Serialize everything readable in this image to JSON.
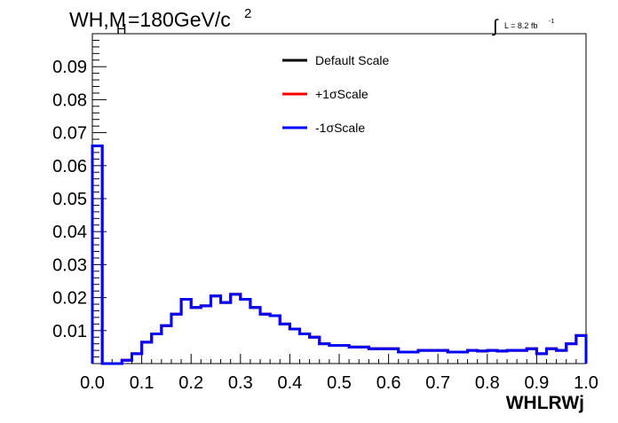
{
  "chart_data": {
    "type": "line",
    "step": true,
    "title": {
      "prefix": "WH,M",
      "subscript": "H",
      "main": "=180GeV/c",
      "superscript": "2"
    },
    "luminosity": {
      "symbol": "∫",
      "text": "L = 8.2 fb",
      "superscript": "-1"
    },
    "xlabel": "WHLRWj",
    "ylabel": "",
    "xlim": [
      0.0,
      1.0
    ],
    "ylim": [
      0.0,
      0.1
    ],
    "x_ticks": [
      "0.0",
      "0.1",
      "0.2",
      "0.3",
      "0.4",
      "0.5",
      "0.6",
      "0.7",
      "0.8",
      "0.9",
      "1.0"
    ],
    "y_ticks": [
      "0.01",
      "0.02",
      "0.03",
      "0.04",
      "0.05",
      "0.06",
      "0.07",
      "0.08",
      "0.09"
    ],
    "bin_edges": [
      0.0,
      0.02,
      0.04,
      0.06,
      0.08,
      0.1,
      0.12,
      0.14,
      0.16,
      0.18,
      0.2,
      0.22,
      0.24,
      0.26,
      0.28,
      0.3,
      0.32,
      0.34,
      0.36,
      0.38,
      0.4,
      0.42,
      0.44,
      0.46,
      0.48,
      0.5,
      0.52,
      0.54,
      0.56,
      0.58,
      0.6,
      0.62,
      0.64,
      0.66,
      0.68,
      0.7,
      0.72,
      0.74,
      0.76,
      0.78,
      0.8,
      0.82,
      0.84,
      0.86,
      0.88,
      0.9,
      0.92,
      0.94,
      0.96,
      0.98,
      1.0
    ],
    "legend_position": "top-center",
    "series": [
      {
        "name": "Default Scale",
        "color": "#000000",
        "values": [
          0.066,
          0.0,
          0.0,
          0.001,
          0.003,
          0.0065,
          0.009,
          0.0115,
          0.015,
          0.0195,
          0.017,
          0.0175,
          0.0205,
          0.0185,
          0.021,
          0.0195,
          0.017,
          0.015,
          0.0145,
          0.012,
          0.0105,
          0.009,
          0.008,
          0.006,
          0.0055,
          0.0055,
          0.005,
          0.005,
          0.0045,
          0.0045,
          0.0045,
          0.0035,
          0.0035,
          0.004,
          0.004,
          0.004,
          0.0035,
          0.0035,
          0.004,
          0.0038,
          0.004,
          0.0038,
          0.004,
          0.004,
          0.0045,
          0.003,
          0.0045,
          0.004,
          0.006,
          0.0085
        ]
      },
      {
        "name": "+1σScale",
        "color": "#ff0000",
        "values": [
          0.066,
          0.0,
          0.0,
          0.001,
          0.003,
          0.0065,
          0.009,
          0.0115,
          0.015,
          0.0195,
          0.017,
          0.0175,
          0.0205,
          0.0185,
          0.021,
          0.0195,
          0.017,
          0.015,
          0.0145,
          0.012,
          0.0105,
          0.009,
          0.008,
          0.006,
          0.0055,
          0.0055,
          0.005,
          0.005,
          0.0045,
          0.0045,
          0.0045,
          0.0035,
          0.0035,
          0.004,
          0.004,
          0.004,
          0.0035,
          0.0035,
          0.004,
          0.0038,
          0.004,
          0.0038,
          0.004,
          0.004,
          0.0045,
          0.003,
          0.0045,
          0.004,
          0.006,
          0.0085
        ]
      },
      {
        "name": "-1σScale",
        "color": "#0000ff",
        "values": [
          0.066,
          0.0,
          0.0,
          0.001,
          0.003,
          0.0065,
          0.009,
          0.0115,
          0.015,
          0.0195,
          0.017,
          0.0175,
          0.0205,
          0.0185,
          0.021,
          0.0195,
          0.017,
          0.015,
          0.0145,
          0.012,
          0.0105,
          0.009,
          0.008,
          0.006,
          0.0055,
          0.0055,
          0.005,
          0.005,
          0.0045,
          0.0045,
          0.0045,
          0.0035,
          0.0035,
          0.004,
          0.004,
          0.004,
          0.0035,
          0.0035,
          0.004,
          0.0038,
          0.004,
          0.0038,
          0.004,
          0.004,
          0.0045,
          0.003,
          0.0045,
          0.004,
          0.006,
          0.0085
        ]
      }
    ]
  }
}
